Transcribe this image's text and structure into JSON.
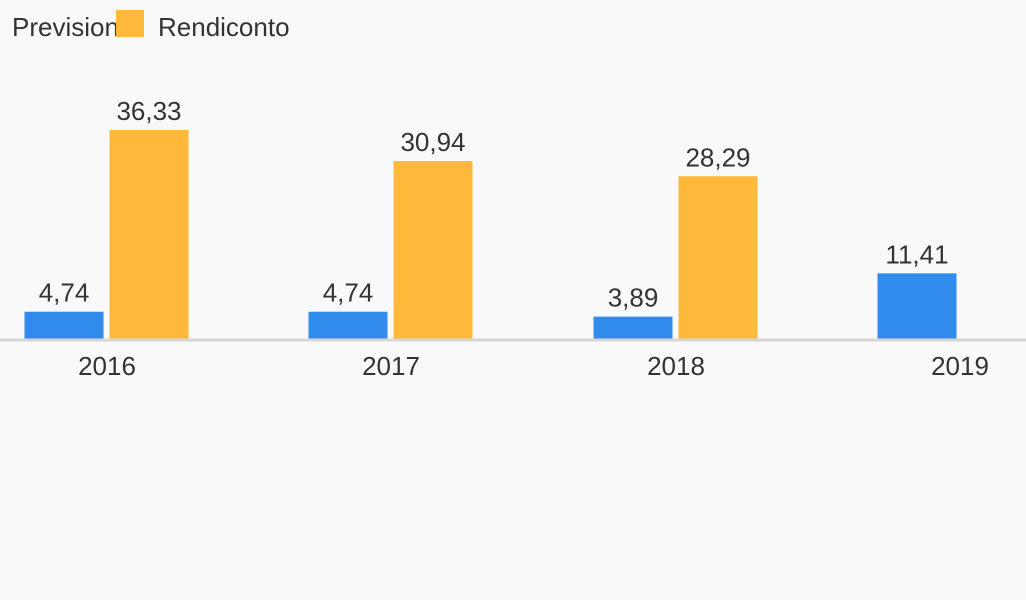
{
  "chart_data": {
    "type": "bar",
    "categories": [
      "2016",
      "2017",
      "2018",
      "2019"
    ],
    "series": [
      {
        "name": "Previsione",
        "color": "#318bec",
        "values": [
          4.74,
          4.74,
          3.89,
          11.41
        ],
        "labels": [
          "4,74",
          "4,74",
          "3,89",
          "11,41"
        ]
      },
      {
        "name": "Rendiconto",
        "color": "#feb83a",
        "values": [
          36.33,
          30.94,
          28.29,
          null
        ],
        "labels": [
          "36,33",
          "30,94",
          "28,29",
          ""
        ]
      }
    ],
    "ylim": [
      0,
      36.33
    ],
    "legend_position": "top-left",
    "grid": false
  }
}
